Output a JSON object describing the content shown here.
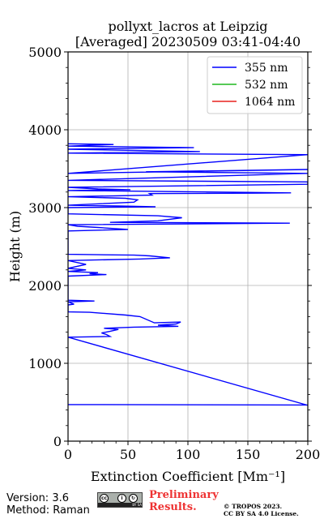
{
  "chart_data": {
    "type": "line",
    "title": [
      "pollyxt_lacros at Leipzig",
      "[Averaged] 20230509 03:41-04:40"
    ],
    "xlabel": "Extinction Coefficient [Mm⁻¹]",
    "ylabel": "Height (m)",
    "xlim": [
      0,
      200
    ],
    "ylim": [
      0,
      5000
    ],
    "xticks": [
      0,
      50,
      100,
      150,
      200
    ],
    "yticks": [
      0,
      1000,
      2000,
      3000,
      4000,
      5000
    ],
    "grid": true,
    "legend_position": "top-right",
    "series": [
      {
        "name": "355 nm",
        "color": "#0000ff",
        "points": [
          [
            0,
            470
          ],
          [
            200,
            465
          ],
          [
            200,
            460
          ],
          [
            0,
            1335
          ],
          [
            35,
            1345
          ],
          [
            32,
            1370
          ],
          [
            28,
            1390
          ],
          [
            35,
            1410
          ],
          [
            42,
            1435
          ],
          [
            30,
            1450
          ],
          [
            55,
            1465
          ],
          [
            92,
            1475
          ],
          [
            75,
            1490
          ],
          [
            90,
            1505
          ],
          [
            94,
            1530
          ],
          [
            72,
            1520
          ],
          [
            60,
            1600
          ],
          [
            48,
            1620
          ],
          [
            18,
            1655
          ],
          [
            0,
            1660
          ],
          [
            0,
            1750
          ],
          [
            5,
            1760
          ],
          [
            0,
            1790
          ],
          [
            22,
            1800
          ],
          [
            0,
            1810
          ],
          [
            0,
            2120
          ],
          [
            32,
            2140
          ],
          [
            18,
            2150
          ],
          [
            25,
            2165
          ],
          [
            0,
            2180
          ],
          [
            15,
            2200
          ],
          [
            0,
            2220
          ],
          [
            15,
            2270
          ],
          [
            0,
            2320
          ],
          [
            60,
            2340
          ],
          [
            85,
            2355
          ],
          [
            68,
            2380
          ],
          [
            55,
            2390
          ],
          [
            25,
            2395
          ],
          [
            0,
            2400
          ],
          [
            0,
            2700
          ],
          [
            50,
            2720
          ],
          [
            25,
            2745
          ],
          [
            8,
            2760
          ],
          [
            0,
            2780
          ],
          [
            185,
            2800
          ],
          [
            35,
            2810
          ],
          [
            75,
            2830
          ],
          [
            95,
            2870
          ],
          [
            75,
            2895
          ],
          [
            0,
            2920
          ],
          [
            0,
            3000
          ],
          [
            73,
            3010
          ],
          [
            45,
            3020
          ],
          [
            0,
            3030
          ],
          [
            55,
            3070
          ],
          [
            58,
            3100
          ],
          [
            48,
            3120
          ],
          [
            0,
            3140
          ],
          [
            70,
            3160
          ],
          [
            68,
            3180
          ],
          [
            155,
            3185
          ],
          [
            186,
            3190
          ],
          [
            0,
            3220
          ],
          [
            52,
            3230
          ],
          [
            25,
            3240
          ],
          [
            0,
            3260
          ],
          [
            200,
            3300
          ],
          [
            200,
            3330
          ],
          [
            0,
            3350
          ],
          [
            200,
            3440
          ],
          [
            65,
            3460
          ],
          [
            200,
            3490
          ],
          [
            0,
            3440
          ],
          [
            200,
            3680
          ],
          [
            0,
            3700
          ],
          [
            110,
            3720
          ],
          [
            0,
            3750
          ],
          [
            105,
            3770
          ],
          [
            0,
            3790
          ],
          [
            38,
            3810
          ],
          [
            0,
            3820
          ]
        ]
      },
      {
        "name": "532 nm",
        "color": "#1fb81f",
        "points": []
      },
      {
        "name": "1064 nm",
        "color": "#e8201e",
        "points": []
      }
    ]
  },
  "footer": {
    "version": "Version: 3.6",
    "method": "Method: Raman",
    "preliminary_line1": "Preliminary",
    "preliminary_line2": "Results.",
    "copyright_line1": "© TROPOS 2023.",
    "copyright_line2": "CC BY SA 4.0 License.",
    "license_badge": "BY SA"
  }
}
